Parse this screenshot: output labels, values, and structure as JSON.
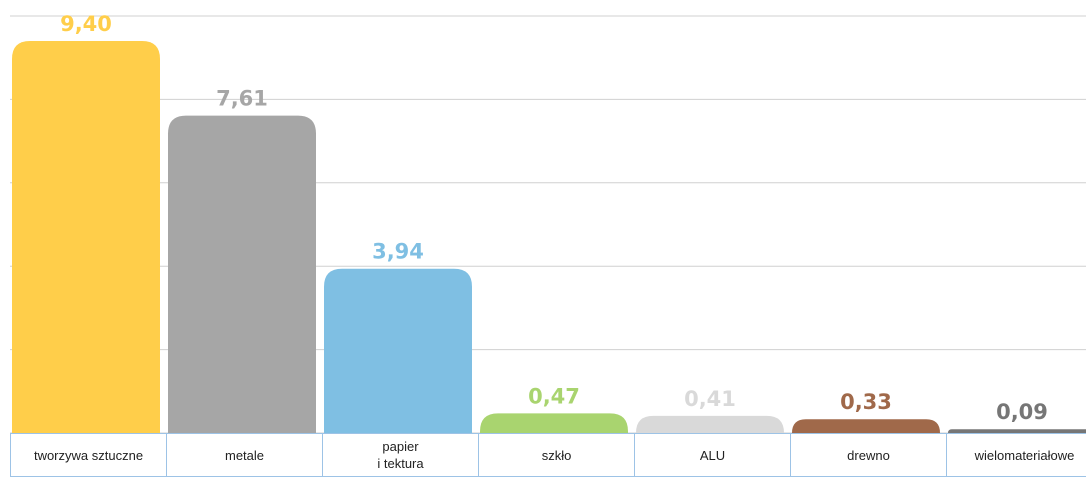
{
  "chart_data": {
    "type": "bar",
    "categories": [
      "tworzywa sztuczne",
      "metale",
      "papier\ni tektura",
      "szkło",
      "ALU",
      "drewno",
      "wielomateriałowe"
    ],
    "values": [
      9.4,
      7.61,
      3.94,
      0.47,
      0.41,
      0.33,
      0.09
    ],
    "value_labels": [
      "9,40",
      "7,61",
      "3,94",
      "0,47",
      "0,41",
      "0,33",
      "0,09"
    ],
    "colors": [
      "#FFCE4A",
      "#A6A6A6",
      "#7FBFE3",
      "#A9D46F",
      "#D9D9D9",
      "#A0694A",
      "#767676"
    ],
    "ylim": [
      0,
      10
    ],
    "yticks": [
      0,
      2,
      4,
      6,
      8,
      10
    ],
    "grid": true
  }
}
